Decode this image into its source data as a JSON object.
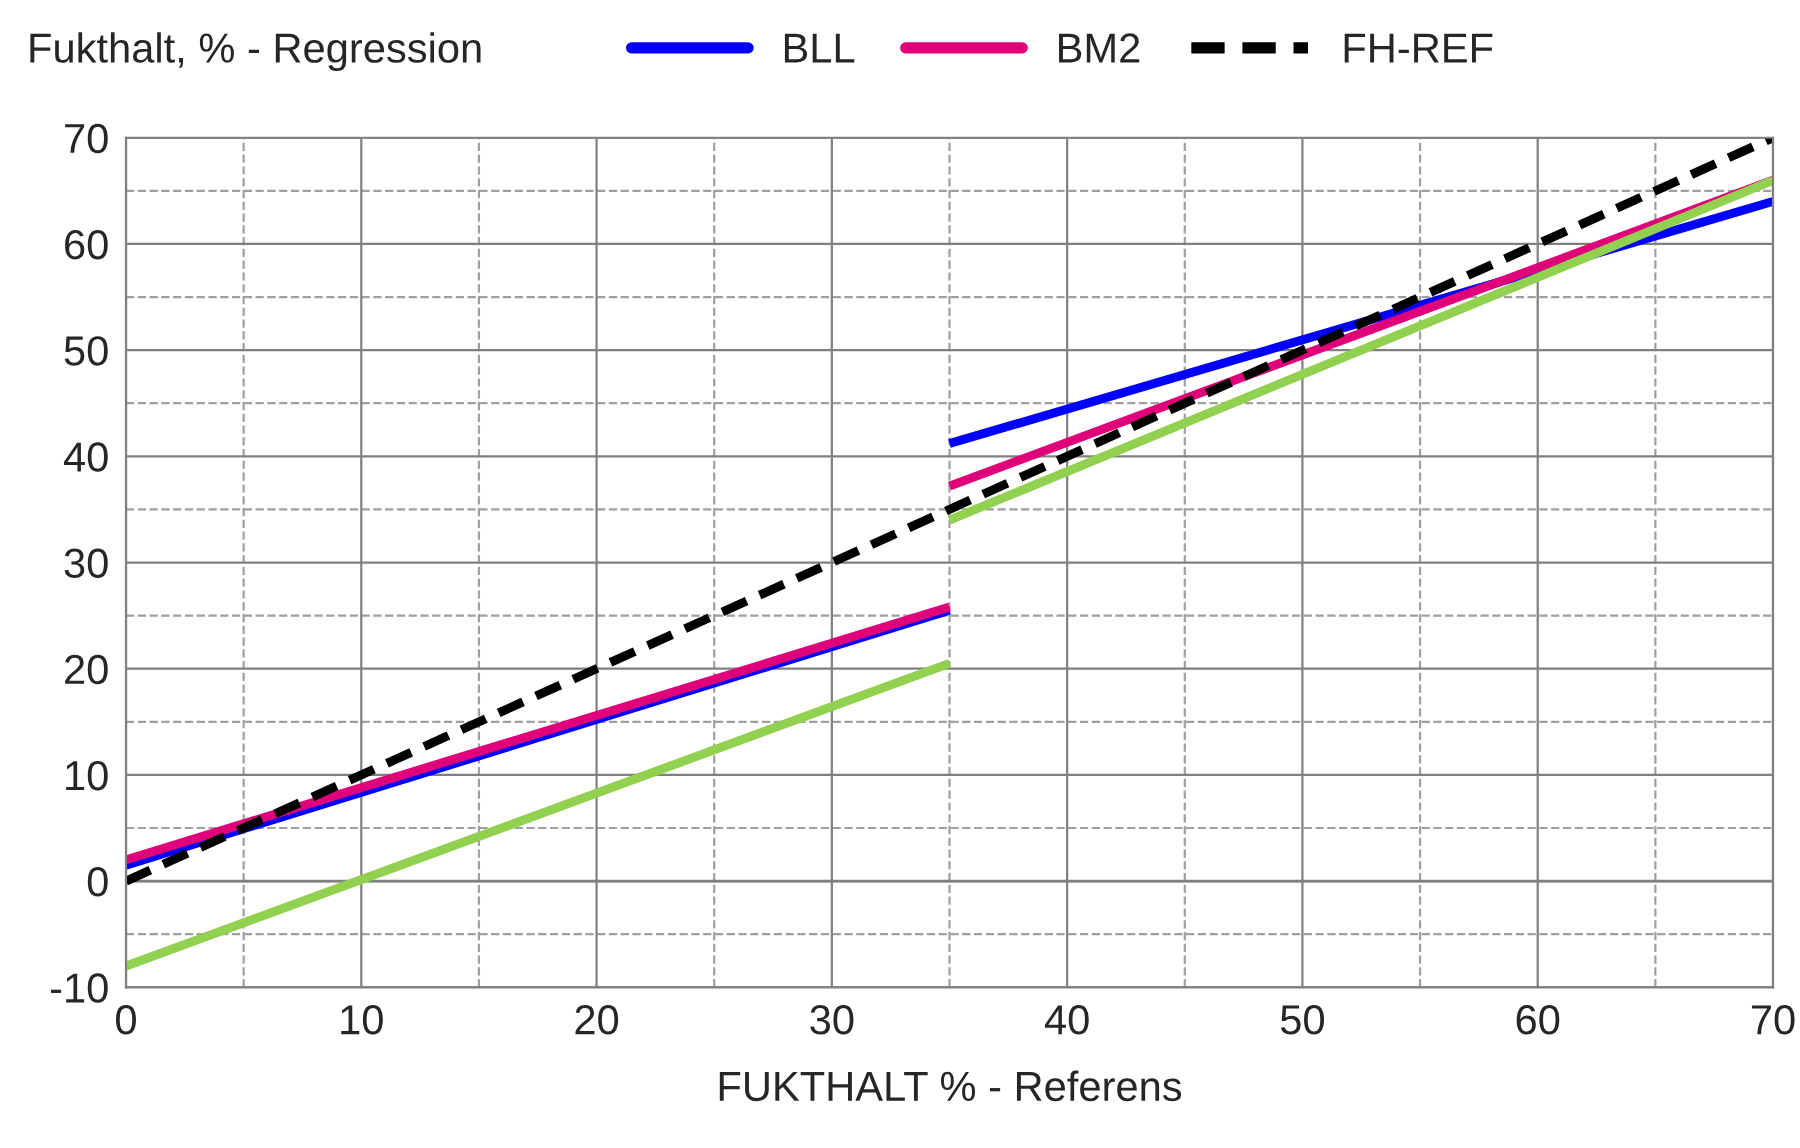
{
  "chart_data": {
    "type": "line",
    "title": "Fukthalt, % - Regression",
    "xlabel": "FUKTHALT % - Referens",
    "series": [
      {
        "name": "BLL",
        "color": "#0000ff",
        "x": [
          0,
          35
        ],
        "values": [
          1.5,
          25.5
        ]
      },
      {
        "color": "#0000ff",
        "x": [
          35,
          70
        ],
        "values": [
          41.2,
          64
        ]
      },
      {
        "name": "BM2",
        "color": "#e0007a",
        "x": [
          0,
          35
        ],
        "values": [
          2,
          25.8
        ]
      },
      {
        "color": "#e0007a",
        "x": [
          35,
          70
        ],
        "values": [
          37.2,
          66
        ]
      },
      {
        "color": "#92d050",
        "x": [
          0,
          35
        ],
        "values": [
          -8,
          20.5
        ]
      },
      {
        "color": "#92d050",
        "x": [
          35,
          70
        ],
        "values": [
          34,
          66
        ]
      },
      {
        "name": "FH-REF",
        "color": "#000000",
        "line_style": "dashed",
        "x": [
          0,
          70
        ],
        "values": [
          0,
          70
        ]
      }
    ],
    "xlim": [
      0,
      70
    ],
    "xticks": [
      0,
      10,
      20,
      30,
      40,
      50,
      60,
      70
    ],
    "ylim": [
      -10,
      70
    ],
    "yticks": [
      -10,
      0,
      10,
      20,
      30,
      40,
      50,
      60,
      70
    ],
    "grid": true,
    "legend": "top",
    "line_style": "solid"
  }
}
